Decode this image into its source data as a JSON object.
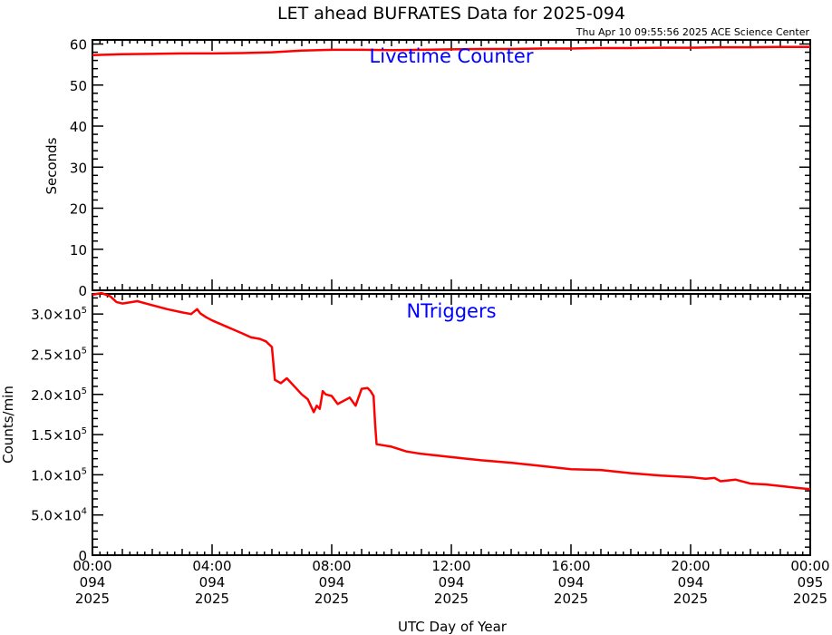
{
  "title": "LET ahead BUFRATES Data for 2025-094",
  "timestamp": "Thu Apr 10 09:55:56 2025 ACE Science Center",
  "xlabel": "UTC Day of Year",
  "x_ticks": [
    {
      "time": "00:00",
      "doy": "094",
      "year": "2025"
    },
    {
      "time": "04:00",
      "doy": "094",
      "year": "2025"
    },
    {
      "time": "08:00",
      "doy": "094",
      "year": "2025"
    },
    {
      "time": "12:00",
      "doy": "094",
      "year": "2025"
    },
    {
      "time": "16:00",
      "doy": "094",
      "year": "2025"
    },
    {
      "time": "20:00",
      "doy": "094",
      "year": "2025"
    },
    {
      "time": "00:00",
      "doy": "095",
      "year": "2025"
    }
  ],
  "colors": {
    "series": "#ff0000",
    "panel_label": "#0000ff",
    "axis": "#000000"
  },
  "chart_data": [
    {
      "type": "line",
      "panel_label": "Livetime Counter",
      "ylabel": "Seconds",
      "xlim": [
        0,
        24
      ],
      "ylim": [
        0,
        61
      ],
      "y_ticks": [
        0,
        10,
        20,
        30,
        40,
        50,
        60
      ],
      "y_tick_labels": [
        "0",
        "10",
        "20",
        "30",
        "40",
        "50",
        "60"
      ],
      "series": [
        {
          "x": [
            0,
            1,
            2,
            3,
            4,
            5,
            6,
            7,
            8,
            9,
            10,
            11,
            12,
            13,
            14,
            15,
            16,
            17,
            18,
            19,
            20,
            21,
            22,
            23,
            24
          ],
          "y": [
            57.3,
            57.5,
            57.6,
            57.7,
            57.7,
            57.8,
            58.0,
            58.4,
            58.6,
            58.6,
            58.5,
            58.6,
            58.7,
            58.8,
            58.8,
            58.9,
            58.9,
            59.0,
            59.0,
            59.1,
            59.1,
            59.2,
            59.2,
            59.3,
            59.3
          ]
        }
      ]
    },
    {
      "type": "line",
      "panel_label": "NTriggers",
      "ylabel": "Counts/min",
      "xlim": [
        0,
        24
      ],
      "ylim": [
        0,
        325000
      ],
      "y_ticks": [
        0,
        50000,
        100000,
        150000,
        200000,
        250000,
        300000
      ],
      "y_tick_labels": [
        {
          "mant": "0",
          "exp": ""
        },
        {
          "mant": "5.0×10",
          "exp": "4"
        },
        {
          "mant": "1.0×10",
          "exp": "5"
        },
        {
          "mant": "1.5×10",
          "exp": "5"
        },
        {
          "mant": "2.0×10",
          "exp": "5"
        },
        {
          "mant": "2.5×10",
          "exp": "5"
        },
        {
          "mant": "3.0×10",
          "exp": "5"
        }
      ],
      "series": [
        {
          "x": [
            0,
            0.3,
            0.6,
            0.8,
            1.0,
            1.5,
            2.0,
            2.5,
            3.0,
            3.3,
            3.5,
            3.6,
            3.8,
            4.0,
            4.5,
            5.0,
            5.3,
            5.6,
            5.8,
            6.0,
            6.1,
            6.3,
            6.5,
            6.8,
            7.0,
            7.2,
            7.4,
            7.5,
            7.6,
            7.7,
            7.8,
            8.0,
            8.2,
            8.4,
            8.6,
            8.8,
            9.0,
            9.2,
            9.3,
            9.4,
            9.45,
            9.5,
            10.0,
            10.5,
            11.0,
            12.0,
            13.0,
            14.0,
            15.0,
            16.0,
            17.0,
            18.0,
            19.0,
            20.0,
            20.5,
            20.8,
            21.0,
            21.5,
            22.0,
            22.5,
            23.0,
            23.5,
            24.0
          ],
          "y": [
            324000,
            326000,
            322000,
            315000,
            313000,
            316000,
            311000,
            306000,
            302000,
            300000,
            306000,
            301000,
            296000,
            292000,
            284000,
            276000,
            271000,
            269000,
            266000,
            259000,
            218000,
            214000,
            220000,
            208000,
            200000,
            194000,
            178000,
            186000,
            182000,
            204000,
            200000,
            198000,
            188000,
            192000,
            196000,
            186000,
            207000,
            208000,
            204000,
            198000,
            165000,
            138000,
            135000,
            129000,
            126000,
            122000,
            118000,
            115000,
            111000,
            107000,
            106000,
            102000,
            99000,
            97000,
            95000,
            96000,
            92000,
            94000,
            89000,
            88000,
            86000,
            84000,
            82000
          ]
        }
      ]
    }
  ]
}
